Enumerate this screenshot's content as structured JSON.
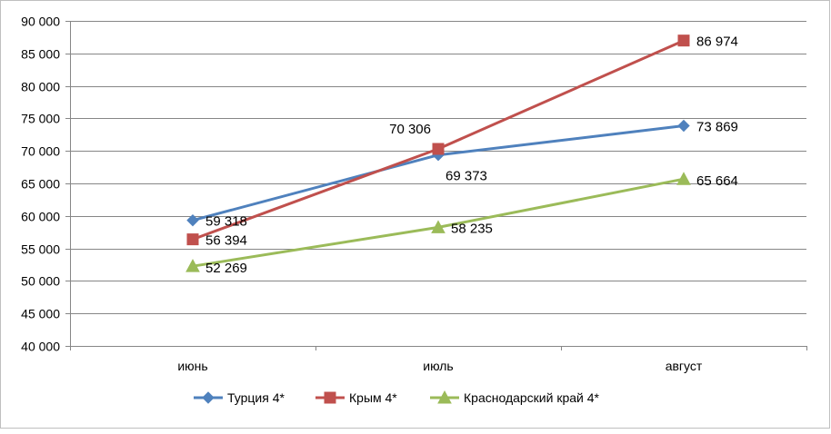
{
  "chart_data": {
    "type": "line",
    "categories": [
      "июнь",
      "июль",
      "август"
    ],
    "series": [
      {
        "name": "Турция 4*",
        "values": [
          59318,
          69373,
          73869
        ],
        "value_labels": [
          "59 318",
          "69 373",
          "73 869"
        ],
        "color": "#4f81bd",
        "marker": "diamond"
      },
      {
        "name": "Крым 4*",
        "values": [
          56394,
          70306,
          86974
        ],
        "value_labels": [
          "56 394",
          "70 306",
          "86 974"
        ],
        "color": "#c0504d",
        "marker": "square"
      },
      {
        "name": "Краснодарский край 4*",
        "values": [
          52269,
          58235,
          65664
        ],
        "value_labels": [
          "52 269",
          "58 235",
          "65 664"
        ],
        "color": "#9bbb59",
        "marker": "triangle"
      }
    ],
    "ylim": [
      40000,
      90000
    ],
    "ytick_labels": [
      "40 000",
      "45 000",
      "50 000",
      "55 000",
      "60 000",
      "65 000",
      "70 000",
      "75 000",
      "80 000",
      "85 000",
      "90 000"
    ],
    "title": "",
    "xlabel": "",
    "ylabel": "",
    "grid": true,
    "legend_position": "bottom"
  }
}
